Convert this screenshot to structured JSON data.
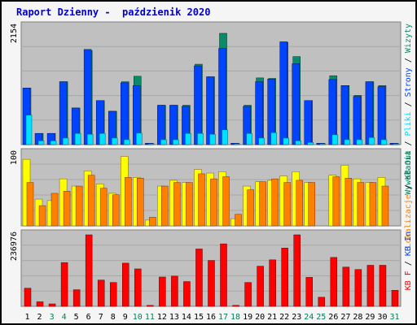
{
  "title": "Raport Dzienny -  paździenik 2020",
  "colors": {
    "panel_bg": "#c0c0c0",
    "grid": "#a8a8a8",
    "visits": "#00805c",
    "pages": "#0044ff",
    "files": "#00e0ff",
    "hits": "#0a8a6a",
    "sites": "#ffff00",
    "kbout": "#ff7f00",
    "kbf": "#ff0000",
    "weekend": "#00805c",
    "weekday": "#000000"
  },
  "chart_data": [
    {
      "type": "bar",
      "panel": "top",
      "y_tick_label": "2154",
      "ymax": 2154,
      "legend": [
        {
          "label": "Wywołania",
          "color": "#00805c"
        },
        {
          "label": "Pliki",
          "color": "#00e0ff"
        },
        {
          "label": "Strony",
          "color": "#0044ff"
        },
        {
          "label": "Wizyty",
          "color": "#0a8a6a"
        }
      ],
      "legend_separator": " / ",
      "categories": [
        "1",
        "2",
        "3",
        "4",
        "5",
        "6",
        "7",
        "8",
        "9",
        "10",
        "11",
        "12",
        "13",
        "14",
        "15",
        "16",
        "17",
        "18",
        "19",
        "20",
        "21",
        "22",
        "23",
        "24",
        "25",
        "26",
        "27",
        "28",
        "29",
        "30",
        "31"
      ],
      "series": [
        {
          "name": "Wywołania",
          "values": [
            1034,
            205,
            205,
            1150,
            670,
            1720,
            805,
            610,
            1150,
            1250,
            25,
            720,
            720,
            720,
            1470,
            1240,
            2035,
            25,
            720,
            1220,
            1210,
            1870,
            1610,
            805,
            25,
            1260,
            1080,
            900,
            1150,
            1080,
            25
          ]
        },
        {
          "name": "Pliki",
          "values": [
            540,
            70,
            70,
            120,
            205,
            190,
            205,
            120,
            90,
            210,
            15,
            90,
            90,
            205,
            205,
            190,
            270,
            15,
            205,
            120,
            220,
            120,
            70,
            40,
            15,
            180,
            90,
            90,
            130,
            90,
            15
          ]
        },
        {
          "name": "Strony",
          "values": [
            1034,
            205,
            205,
            1150,
            670,
            1740,
            805,
            610,
            1130,
            1080,
            25,
            720,
            720,
            700,
            1440,
            1240,
            1760,
            25,
            700,
            1150,
            1200,
            1880,
            1480,
            805,
            25,
            1190,
            1080,
            880,
            1150,
            1060,
            25
          ]
        }
      ]
    },
    {
      "type": "bar",
      "panel": "middle",
      "y_tick_label": "100",
      "ymax": 100,
      "legend": [
        {
          "label": "Lokalizacje",
          "color": "#ff7f00"
        },
        {
          "label": "KB Out",
          "color": "#00805c"
        }
      ],
      "legend_separator": " / ",
      "categories": [
        "1",
        "2",
        "3",
        "4",
        "5",
        "6",
        "7",
        "8",
        "9",
        "10",
        "11",
        "12",
        "13",
        "14",
        "15",
        "16",
        "17",
        "18",
        "19",
        "20",
        "21",
        "22",
        "23",
        "24",
        "25",
        "26",
        "27",
        "28",
        "29",
        "30",
        "31"
      ],
      "series": [
        {
          "name": "Lokalizacje",
          "values": [
            92,
            37,
            35,
            65,
            55,
            76,
            58,
            45,
            96,
            67,
            8,
            55,
            63,
            60,
            78,
            73,
            75,
            10,
            55,
            61,
            63,
            69,
            75,
            60,
            0,
            70,
            84,
            65,
            60,
            67,
            0
          ]
        },
        {
          "name": "KB Out",
          "values": [
            60,
            28,
            45,
            48,
            55,
            70,
            52,
            43,
            67,
            66,
            12,
            55,
            60,
            60,
            72,
            65,
            68,
            16,
            50,
            61,
            65,
            60,
            63,
            60,
            0,
            68,
            66,
            60,
            60,
            55,
            0
          ]
        }
      ]
    },
    {
      "type": "bar",
      "panel": "bottom",
      "y_tick_label": "236976",
      "ymax": 236976,
      "legend": [
        {
          "label": "KB F",
          "color": "#ff0000"
        },
        {
          "label": "KB In",
          "color": "#0044ff"
        }
      ],
      "legend_separator": " / ",
      "categories": [
        "1",
        "2",
        "3",
        "4",
        "5",
        "6",
        "7",
        "8",
        "9",
        "10",
        "11",
        "12",
        "13",
        "14",
        "15",
        "16",
        "17",
        "18",
        "19",
        "20",
        "21",
        "22",
        "23",
        "24",
        "25",
        "26",
        "27",
        "28",
        "29",
        "30",
        "31"
      ],
      "series": [
        {
          "name": "KB F",
          "values": [
            60000,
            15000,
            8000,
            145000,
            55000,
            236976,
            87000,
            79000,
            143000,
            124000,
            3000,
            97000,
            100000,
            82000,
            190000,
            152000,
            207000,
            3000,
            79000,
            133000,
            154000,
            193000,
            236976,
            96000,
            30000,
            162000,
            130000,
            122000,
            136000,
            136000,
            53000
          ]
        }
      ]
    }
  ],
  "weekend_days": [
    3,
    4,
    10,
    11,
    17,
    18,
    24,
    25,
    31
  ]
}
